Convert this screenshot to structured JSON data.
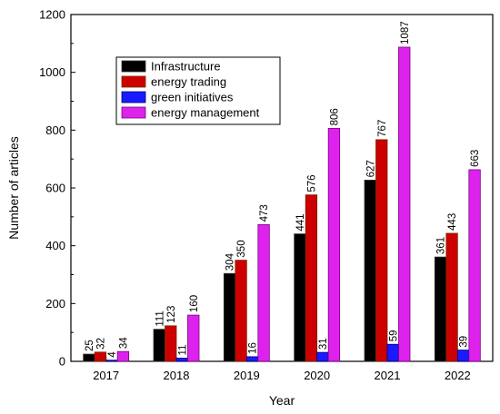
{
  "chart_data": {
    "type": "bar",
    "categories": [
      "2017",
      "2018",
      "2019",
      "2020",
      "2021",
      "2022"
    ],
    "series": [
      {
        "name": "Infrastructure",
        "color": "#000000",
        "stroke": "#333333",
        "values": [
          25,
          111,
          304,
          441,
          627,
          361
        ]
      },
      {
        "name": "energy trading",
        "color": "#cc0000",
        "stroke": "#7a2a00",
        "values": [
          32,
          123,
          350,
          576,
          767,
          443
        ]
      },
      {
        "name": "green initiatives",
        "color": "#1a1aff",
        "stroke": "#00007a",
        "values": [
          4,
          11,
          16,
          31,
          59,
          39
        ]
      },
      {
        "name": "energy management",
        "color": "#dd22ee",
        "stroke": "#7a007a",
        "values": [
          34,
          160,
          473,
          806,
          1087,
          663
        ]
      }
    ],
    "xlabel": "Year",
    "ylabel": "Number of articles",
    "ylim": [
      0,
      1200
    ],
    "yticks": [
      "0",
      "200",
      "400",
      "600",
      "800",
      "1000",
      "1200"
    ],
    "grid": false,
    "legend_position": "top-left"
  }
}
